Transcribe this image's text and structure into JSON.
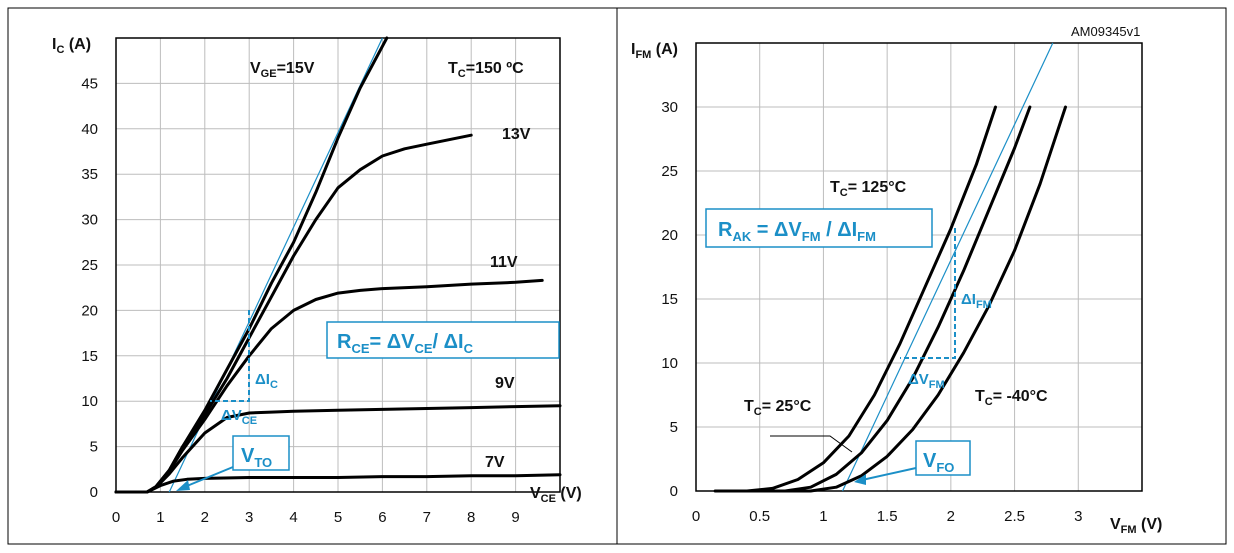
{
  "colors": {
    "accent": "#1b8fc7",
    "curve": "#000000",
    "grid": "#bdbdbd",
    "frame": "#000000"
  },
  "annotation_id": "AM09345v1",
  "chart_data": [
    {
      "type": "line",
      "xlabel_main": "V",
      "xlabel_sub": "CE",
      "xlabel_unit": " (V)",
      "ylabel_main": "I",
      "ylabel_sub": "C",
      "ylabel_unit": " (A)",
      "xlim": [
        0,
        10
      ],
      "ylim": [
        0,
        50
      ],
      "xticks": [
        0,
        1,
        2,
        3,
        4,
        5,
        6,
        7,
        8,
        9
      ],
      "yticks": [
        0,
        5,
        10,
        15,
        20,
        25,
        30,
        35,
        40,
        45
      ],
      "grid": true,
      "condition": {
        "main": "T",
        "sub": "C",
        "rest": "=150 ºC"
      },
      "series": [
        {
          "name": "V_GE=15V",
          "label": {
            "main": "V",
            "sub": "GE",
            "rest": "=15V"
          },
          "x": [
            0,
            0.7,
            0.9,
            1.2,
            1.5,
            2,
            2.5,
            3,
            3.5,
            4,
            4.5,
            5,
            5.5,
            6.1
          ],
          "y": [
            0,
            0,
            0.6,
            2.4,
            5,
            9,
            13.5,
            18,
            23,
            27.5,
            33,
            39,
            44.5,
            50
          ]
        },
        {
          "name": "13V",
          "label": {
            "main": "13V",
            "sub": "",
            "rest": ""
          },
          "x": [
            0,
            0.7,
            0.9,
            1.2,
            1.5,
            2,
            2.5,
            3,
            3.5,
            4,
            4.5,
            5,
            5.5,
            6,
            6.5,
            7,
            7.5,
            8
          ],
          "y": [
            0,
            0,
            0.6,
            2.4,
            5,
            8.5,
            12.5,
            17,
            21.5,
            26,
            30,
            33.5,
            35.5,
            37,
            37.8,
            38.3,
            38.8,
            39.3
          ]
        },
        {
          "name": "11V",
          "label": {
            "main": "11V",
            "sub": "",
            "rest": ""
          },
          "x": [
            0,
            0.7,
            0.9,
            1.2,
            1.5,
            2,
            2.5,
            3,
            3.5,
            4,
            4.5,
            5,
            5.5,
            6,
            7,
            8,
            9,
            9.6
          ],
          "y": [
            0,
            0,
            0.6,
            2.3,
            4.6,
            8,
            11.7,
            15,
            18,
            20,
            21.2,
            21.9,
            22.2,
            22.4,
            22.6,
            22.9,
            23.1,
            23.3
          ]
        },
        {
          "name": "9V",
          "label": {
            "main": "9V",
            "sub": "",
            "rest": ""
          },
          "x": [
            0,
            0.7,
            0.9,
            1.2,
            1.5,
            2,
            2.5,
            3,
            3.5,
            4,
            5,
            6,
            7,
            8,
            9,
            10
          ],
          "y": [
            0,
            0,
            0.5,
            2,
            3.8,
            6.5,
            8.2,
            8.7,
            8.8,
            8.9,
            9,
            9.1,
            9.2,
            9.3,
            9.4,
            9.5
          ]
        },
        {
          "name": "7V",
          "label": {
            "main": "7V",
            "sub": "",
            "rest": ""
          },
          "x": [
            0,
            0.7,
            1,
            1.3,
            1.6,
            2,
            3,
            4,
            5,
            6,
            7,
            8,
            9,
            10
          ],
          "y": [
            0,
            0,
            0.7,
            1.2,
            1.4,
            1.5,
            1.6,
            1.6,
            1.6,
            1.7,
            1.7,
            1.8,
            1.8,
            1.9
          ]
        }
      ],
      "tangent": {
        "x": [
          1.2,
          6.0
        ],
        "y": [
          0,
          50
        ]
      },
      "formula": {
        "a": "R",
        "a_sub": "CE",
        "b": "= ΔV",
        "b_sub": "CE",
        "c": "/ ΔI",
        "c_sub": "C"
      },
      "delta_y": {
        "main": "ΔI",
        "sub": "C"
      },
      "delta_x": {
        "main": "ΔV",
        "sub": "CE"
      },
      "threshold": {
        "main": "V",
        "sub": "TO"
      }
    },
    {
      "type": "line",
      "xlabel_main": "V",
      "xlabel_sub": "FM",
      "xlabel_unit": " (V)",
      "ylabel_main": "I",
      "ylabel_sub": "FM",
      "ylabel_unit": " (A)",
      "xlim": [
        0,
        3.5
      ],
      "ylim": [
        0,
        35
      ],
      "xticks": [
        0,
        0.5,
        1,
        1.5,
        2,
        2.5,
        3
      ],
      "xticklabels": [
        "0",
        "0.5",
        "1",
        "1.5",
        "2",
        "2.5",
        "3"
      ],
      "yticks": [
        0,
        5,
        10,
        15,
        20,
        25,
        30
      ],
      "grid": true,
      "series": [
        {
          "name": "T_C= 125°C",
          "label": {
            "main": "T",
            "sub": "C",
            "rest": "= 125°C"
          },
          "x": [
            0.15,
            0.4,
            0.6,
            0.8,
            1.0,
            1.2,
            1.4,
            1.6,
            1.8,
            2.0,
            2.2,
            2.35
          ],
          "y": [
            0,
            0,
            0.2,
            0.9,
            2.2,
            4.3,
            7.5,
            11.5,
            16,
            20.5,
            25.5,
            30
          ]
        },
        {
          "name": "T_C= 25°C",
          "label": {
            "main": "T",
            "sub": "C",
            "rest": "= 25°C"
          },
          "x": [
            0.4,
            0.7,
            0.9,
            1.1,
            1.3,
            1.5,
            1.7,
            1.9,
            2.1,
            2.3,
            2.5,
            2.62
          ],
          "y": [
            0,
            0,
            0.3,
            1.3,
            3,
            5.5,
            8.8,
            12.8,
            17.2,
            22,
            26.8,
            30
          ]
        },
        {
          "name": "T_C= -40°C",
          "label": {
            "main": "T",
            "sub": "C",
            "rest": "= -40°C"
          },
          "x": [
            0.6,
            0.9,
            1.1,
            1.3,
            1.5,
            1.7,
            1.9,
            2.1,
            2.3,
            2.5,
            2.7,
            2.9
          ],
          "y": [
            0,
            0,
            0.3,
            1.2,
            2.7,
            4.8,
            7.5,
            10.8,
            14.5,
            18.8,
            24,
            30
          ]
        }
      ],
      "tangent": {
        "x": [
          1.15,
          2.8
        ],
        "y": [
          0,
          35
        ]
      },
      "formula": {
        "a": "R",
        "a_sub": "AK",
        "b": " = ΔV",
        "b_sub": "FM",
        "c": " / ΔI",
        "c_sub": "FM"
      },
      "delta_y": {
        "main": "ΔI",
        "sub": "FM"
      },
      "delta_x": {
        "main": "ΔV",
        "sub": "FM"
      },
      "threshold": {
        "main": "V",
        "sub": "FO"
      }
    }
  ]
}
